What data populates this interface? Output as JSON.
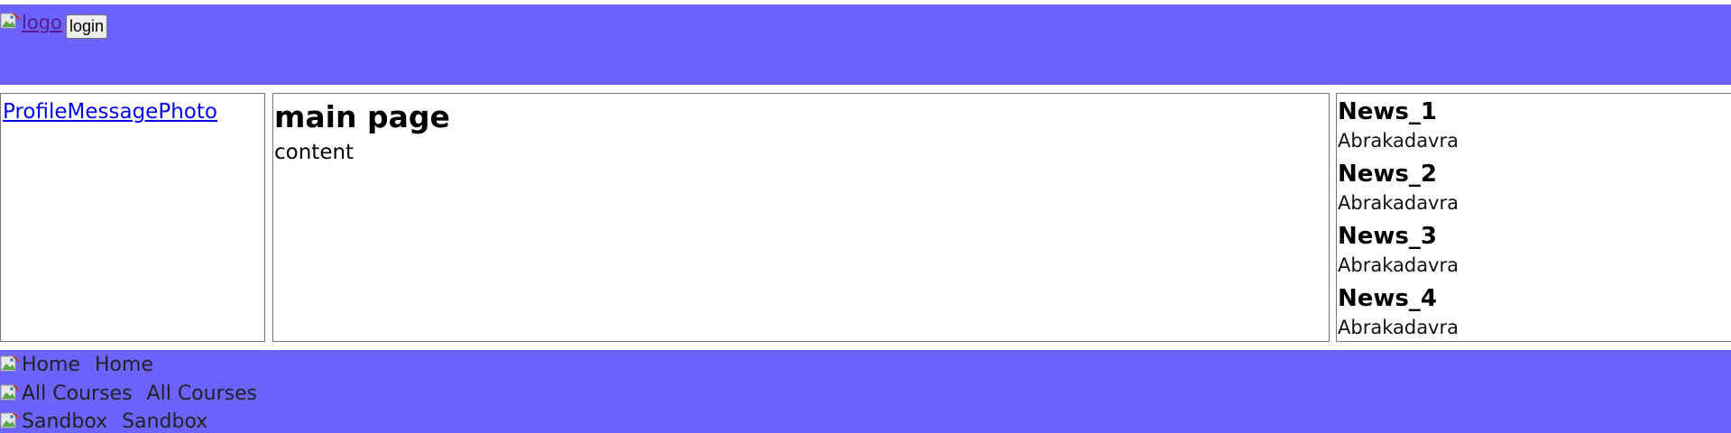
{
  "header": {
    "logo_alt": "logo",
    "login_label": "login"
  },
  "sidebar": {
    "links": [
      "Profile",
      "Message",
      "Photo"
    ]
  },
  "main": {
    "title": "main page",
    "content": "content"
  },
  "news": [
    {
      "title": "News_1",
      "text": "Abrakadavra"
    },
    {
      "title": "News_2",
      "text": "Abrakadavra"
    },
    {
      "title": "News_3",
      "text": "Abrakadavra"
    },
    {
      "title": "News_4",
      "text": "Abrakadavra"
    }
  ],
  "footer": {
    "items": [
      {
        "alt": "Home",
        "label": "Home"
      },
      {
        "alt": "All Courses",
        "label": "All Courses"
      },
      {
        "alt": "Sandbox",
        "label": "Sandbox"
      }
    ]
  },
  "colors": {
    "bar": "#6c63ff",
    "link": "#0000ee",
    "visited_link": "#551a8b"
  },
  "icons": {
    "broken_image": "broken-image-icon"
  }
}
